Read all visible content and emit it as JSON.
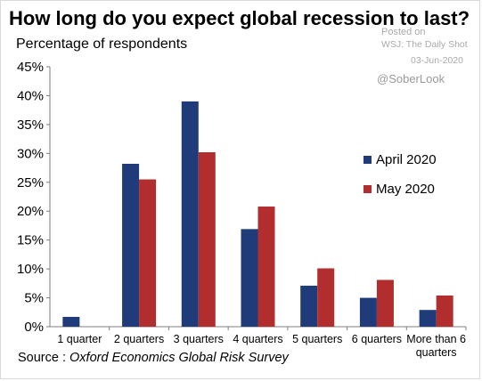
{
  "watermark": {
    "posted_on": "Posted on",
    "source": "WSJ: The Daily Shot",
    "date": "03-Jun-2020",
    "handle": "@SoberLook"
  },
  "source_note": {
    "prefix": "Source :",
    "name": "Oxford Economics Global Risk Survey"
  },
  "chart_data": {
    "type": "bar",
    "title": "How long do you expect global recession to last?",
    "subtitle": "Percentage of respondents",
    "categories": [
      [
        "1 quarter"
      ],
      [
        "2 quarters"
      ],
      [
        "3 quarters"
      ],
      [
        "4 quarters"
      ],
      [
        "5 quarters"
      ],
      [
        "6 quarters"
      ],
      [
        "More than 6",
        "quarters"
      ]
    ],
    "series": [
      {
        "name": "April 2020",
        "color": "#1f3b7a",
        "values": [
          1.7,
          28.2,
          39.0,
          16.9,
          7.1,
          5.0,
          2.9
        ]
      },
      {
        "name": "May 2020",
        "color": "#b22e2e",
        "values": [
          0,
          25.5,
          30.2,
          20.8,
          10.1,
          8.1,
          5.4
        ]
      }
    ],
    "ylim": [
      0,
      45
    ],
    "yticks": [
      0,
      5,
      10,
      15,
      20,
      25,
      30,
      35,
      40,
      45
    ],
    "ytick_suffix": "%",
    "grid": false,
    "legend": "right"
  }
}
